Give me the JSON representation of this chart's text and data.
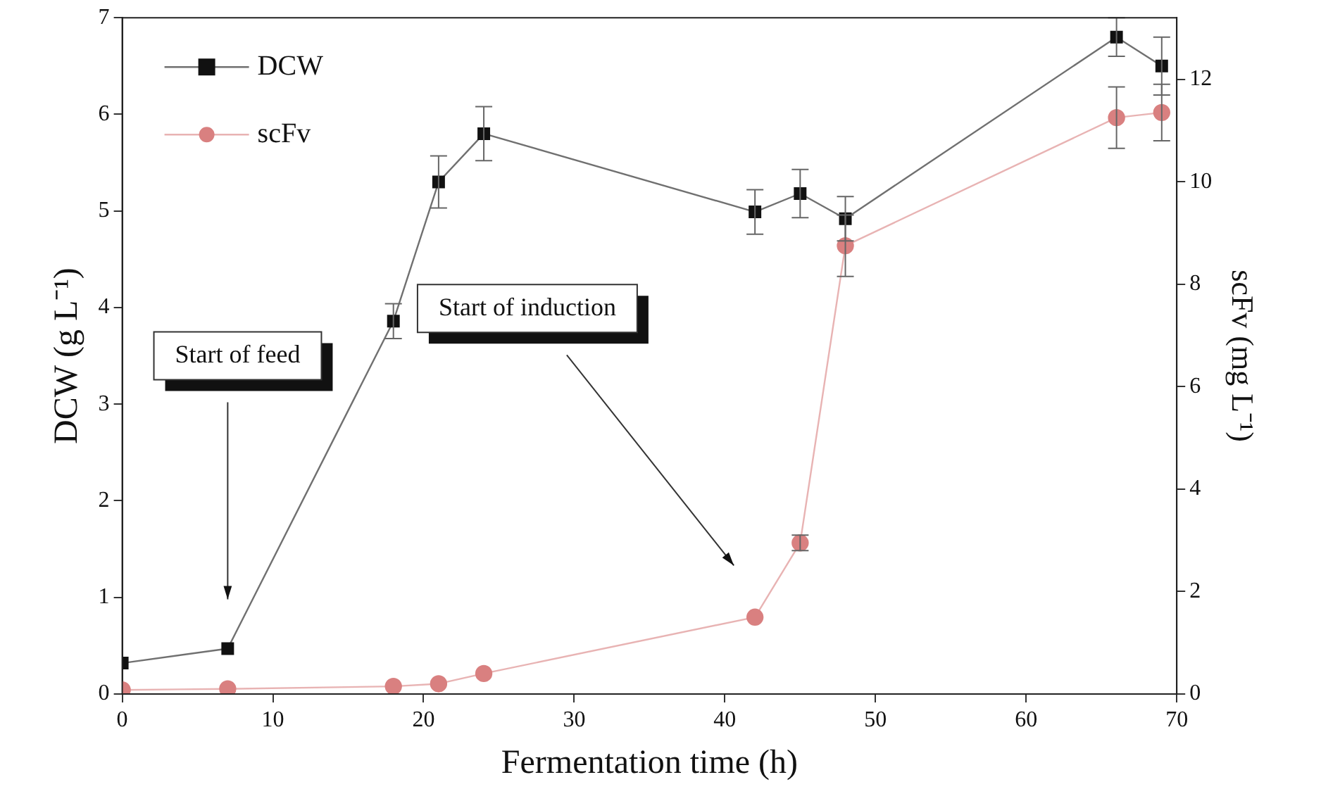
{
  "chart_data": {
    "type": "line",
    "xlabel": "Fermentation time (h)",
    "ylabel": "DCW (g L⁻¹)",
    "y2label": "scFv (mg L⁻¹)",
    "x": [
      0,
      7,
      18,
      21,
      24,
      42,
      45,
      48,
      66,
      69
    ],
    "series": [
      {
        "name": "DCW",
        "color": "#111111",
        "marker": "square",
        "values": [
          0.32,
          0.47,
          3.86,
          5.3,
          5.8,
          4.99,
          5.18,
          4.92,
          6.8,
          6.5
        ],
        "errors": [
          null,
          null,
          0.18,
          0.27,
          0.28,
          0.23,
          0.25,
          0.23,
          0.2,
          0.3
        ]
      },
      {
        "name": "scFv",
        "color": "#d98080",
        "marker": "circle",
        "axis": "y2",
        "values": [
          0.08,
          0.1,
          0.15,
          0.2,
          0.4,
          1.5,
          2.95,
          8.75,
          11.25,
          11.35
        ],
        "errors": [
          null,
          null,
          null,
          null,
          null,
          null,
          0.15,
          0.6,
          0.6,
          0.55
        ]
      }
    ],
    "xlim": [
      0,
      70
    ],
    "xticks": [
      0,
      10,
      20,
      30,
      40,
      50,
      60,
      70
    ],
    "ylim": [
      0,
      7
    ],
    "yticks": [
      0,
      1,
      2,
      3,
      4,
      5,
      6,
      7
    ],
    "y2lim": [
      0,
      13.2
    ],
    "y2ticks": [
      0,
      2,
      4,
      6,
      8,
      10,
      12
    ],
    "legend": "top left",
    "grid": false,
    "annotations": [
      "Start of feed",
      "Start of induction"
    ]
  }
}
